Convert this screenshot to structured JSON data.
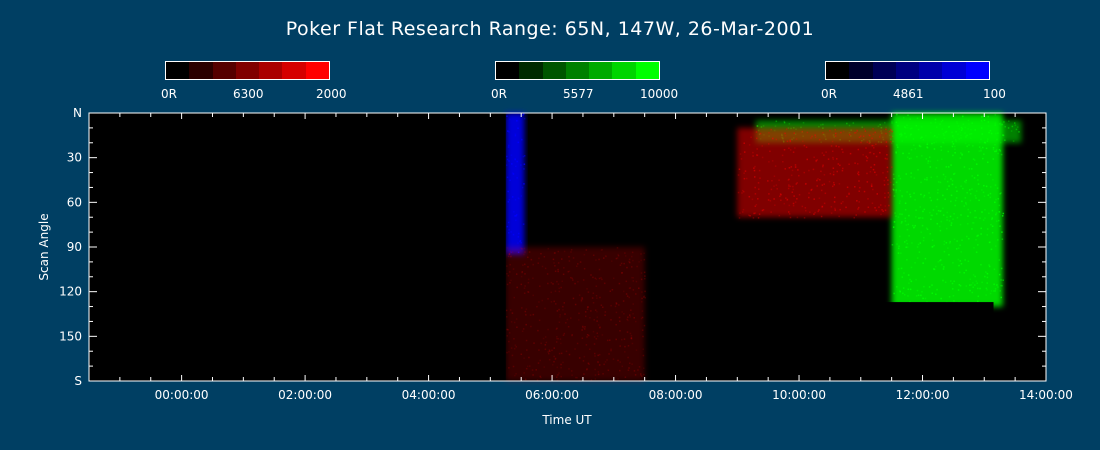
{
  "chart_data": {
    "type": "heatmap",
    "title": "Poker Flat Research Range: 65N, 147W, 26-Mar-2001",
    "xlabel": "Time UT",
    "ylabel": "Scan Angle",
    "x_ticks": [
      "00:00:00",
      "02:00:00",
      "04:00:00",
      "06:00:00",
      "08:00:00",
      "10:00:00",
      "12:00:00",
      "14:00:00"
    ],
    "x_tick_hours": [
      0,
      2,
      4,
      6,
      8,
      10,
      12,
      14
    ],
    "xlim_hours": [
      -1.5,
      14
    ],
    "y_ticks": [
      "N",
      "30",
      "60",
      "90",
      "120",
      "150",
      "S"
    ],
    "y_tick_values": [
      0,
      30,
      60,
      90,
      120,
      150,
      180
    ],
    "ylim": [
      0,
      180
    ],
    "colorbars": [
      {
        "name": "6300",
        "min_label": "0R",
        "max_label": "2000",
        "color": "#ff0000",
        "swatches": [
          "#000000",
          "#2a0000",
          "#550000",
          "#800000",
          "#aa0000",
          "#d50000",
          "#ff0000"
        ]
      },
      {
        "name": "5577",
        "min_label": "0R",
        "max_label": "10000",
        "color": "#00ff00",
        "swatches": [
          "#000000",
          "#002a00",
          "#005500",
          "#008000",
          "#00aa00",
          "#00d500",
          "#00ff00"
        ]
      },
      {
        "name": "4861",
        "min_label": "0R",
        "max_label": "100",
        "color": "#0000ff",
        "swatches": [
          "#000000",
          "#00002a",
          "#000055",
          "#000080",
          "#0000aa",
          "#0000d5",
          "#0000ff"
        ]
      }
    ],
    "regions": [
      {
        "channel": "4861",
        "start_hour": 5.25,
        "end_hour": 5.55,
        "scan_from": 0,
        "scan_to": 95,
        "intensity": "high"
      },
      {
        "channel": "6300",
        "start_hour": 5.25,
        "end_hour": 7.5,
        "scan_from": 90,
        "scan_to": 180,
        "intensity": "low"
      },
      {
        "channel": "5577",
        "start_hour": 11.5,
        "end_hour": 13.3,
        "scan_from": 0,
        "scan_to": 130,
        "intensity": "high"
      },
      {
        "channel": "5577",
        "start_hour": 9.3,
        "end_hour": 13.6,
        "scan_from": 5,
        "scan_to": 20,
        "intensity": "medium"
      },
      {
        "channel": "6300",
        "start_hour": 9.0,
        "end_hour": 11.5,
        "scan_from": 10,
        "scan_to": 70,
        "intensity": "medium"
      }
    ],
    "no_data_gaps": [
      {
        "start_hour": -1.5,
        "end_hour": 5.25,
        "scan_from": 0,
        "scan_to": 180
      },
      {
        "start_hour": 11.05,
        "end_hour": 13.15,
        "scan_from": 127,
        "scan_to": 180
      }
    ]
  },
  "colors": {
    "background": "#003f63",
    "plot_background": "#000000",
    "axis": "#ffffff"
  }
}
